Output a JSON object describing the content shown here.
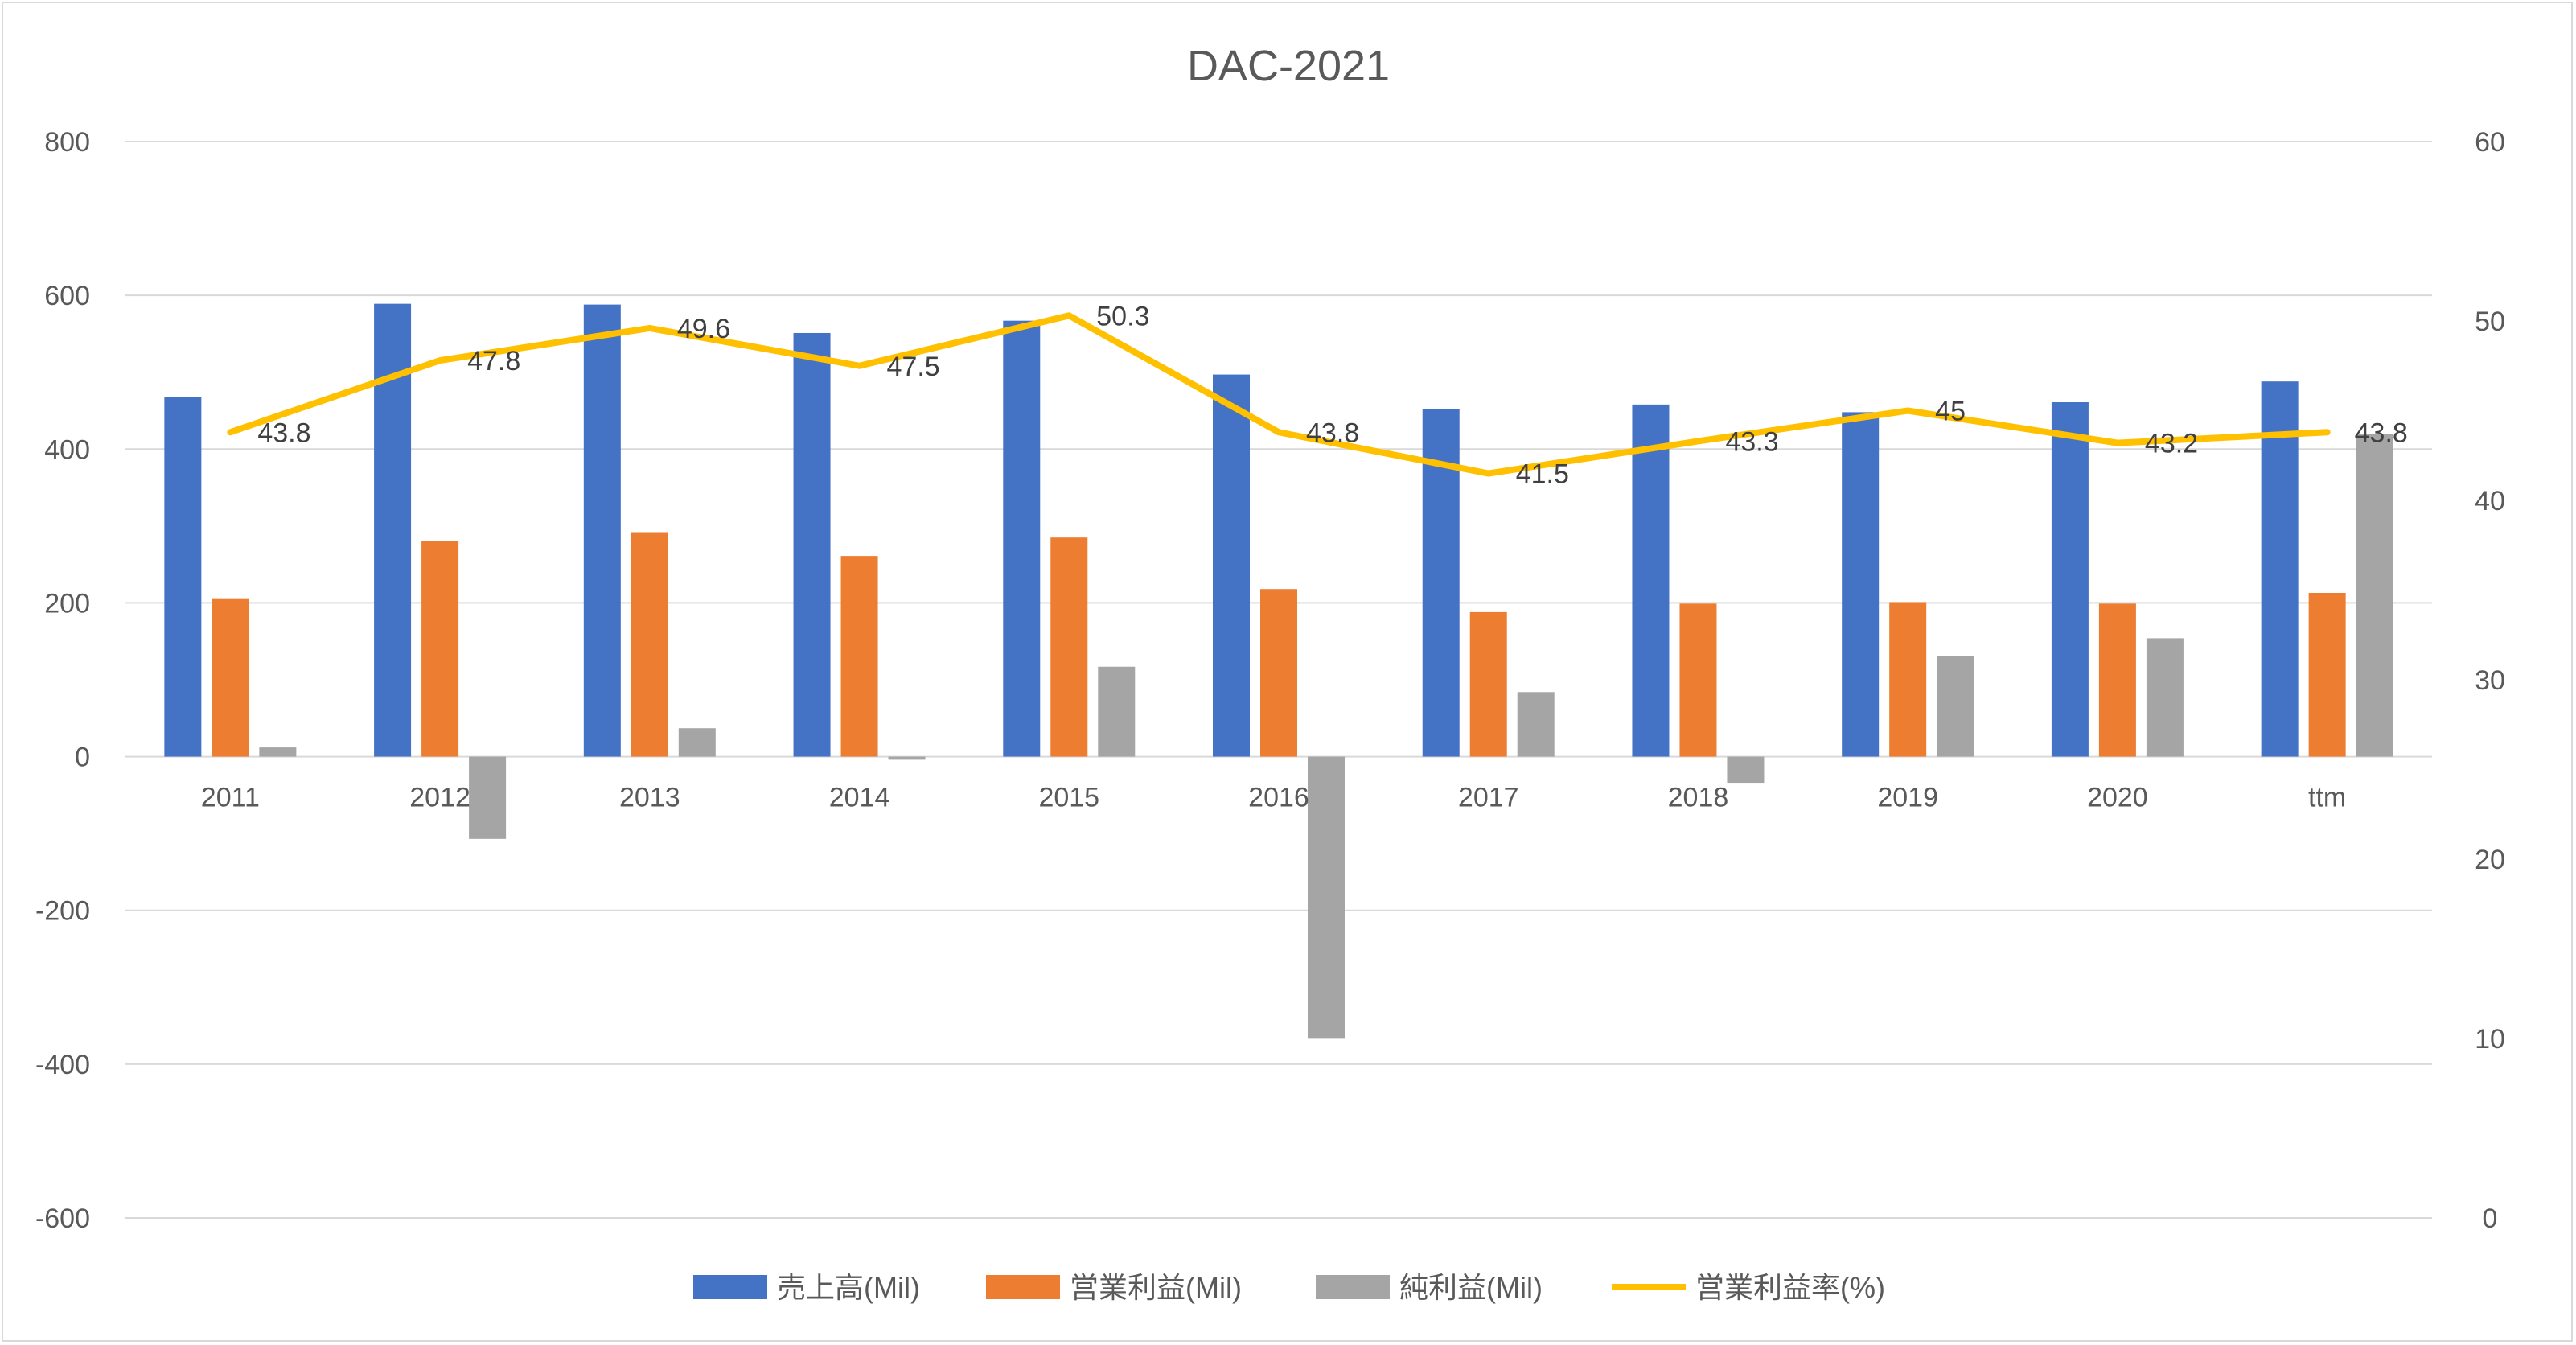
{
  "chart_data": {
    "type": "bar",
    "title": "DAC-2021",
    "categories": [
      "2011",
      "2012",
      "2013",
      "2014",
      "2015",
      "2016",
      "2017",
      "2018",
      "2019",
      "2020",
      "ttm"
    ],
    "series": [
      {
        "name": "売上高(Mil)",
        "type": "bar",
        "axis": "left",
        "color": "#4472C4",
        "values": [
          468,
          589,
          588,
          551,
          567,
          497,
          452,
          458,
          448,
          461,
          488
        ]
      },
      {
        "name": "営業利益(Mil)",
        "type": "bar",
        "axis": "left",
        "color": "#ED7D31",
        "values": [
          205,
          281,
          292,
          261,
          285,
          218,
          188,
          199,
          201,
          199,
          213
        ]
      },
      {
        "name": "純利益(Mil)",
        "type": "bar",
        "axis": "left",
        "color": "#A5A5A5",
        "values": [
          12,
          -107,
          37,
          -4,
          117,
          -366,
          84,
          -34,
          131,
          154,
          420
        ]
      },
      {
        "name": "営業利益率(%)",
        "type": "line",
        "axis": "right",
        "color": "#FFC000",
        "values": [
          43.8,
          47.8,
          49.6,
          47.5,
          50.3,
          43.8,
          41.5,
          43.3,
          45,
          43.2,
          43.8
        ],
        "labels": [
          "43.8",
          "47.8",
          "49.6",
          "47.5",
          "50.3",
          "43.8",
          "41.5",
          "43.3",
          "45",
          "43.2",
          "43.8"
        ]
      }
    ],
    "y_left": {
      "min": -600,
      "max": 800,
      "step": 200,
      "ticks": [
        "800",
        "600",
        "400",
        "200",
        "0",
        "-200",
        "-400",
        "-600"
      ]
    },
    "y_right": {
      "min": 0,
      "max": 60,
      "step": 10,
      "ticks": [
        "60",
        "50",
        "40",
        "30",
        "20",
        "10",
        "0"
      ]
    },
    "gridlines": true,
    "legend_position": "bottom"
  }
}
